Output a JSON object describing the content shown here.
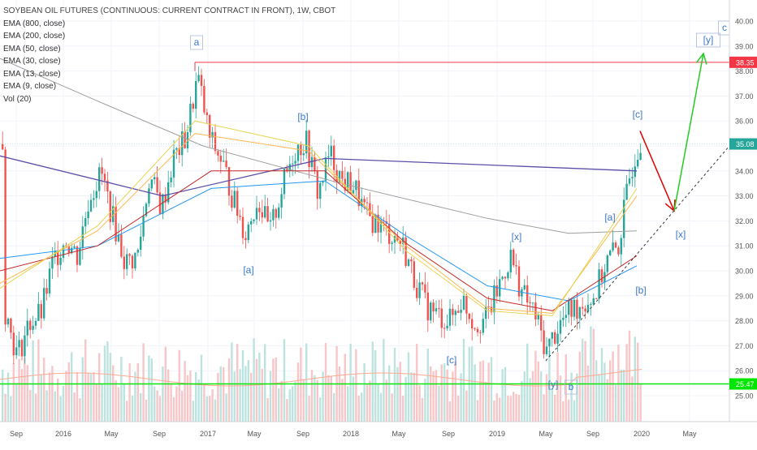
{
  "header": {
    "title": "SOYBEAN OIL FUTURES (CONTINUOUS: CURRENT CONTRACT IN FRONT), 1W, CBOT",
    "indicators": [
      "EMA (800, close)",
      "EMA (200, close)",
      "EMA (50, close)",
      "EMA (30, close)",
      "EMA (13, close)",
      "EMA (9, close)",
      "Vol (20)"
    ]
  },
  "chart_data": {
    "type": "line",
    "symbol": "Soybean Oil Futures",
    "interval": "1W",
    "x_tick_labels": [
      "Sep",
      "2016",
      "May",
      "Sep",
      "2017",
      "May",
      "Sep",
      "2018",
      "May",
      "Sep",
      "2019",
      "May",
      "Sep",
      "2020",
      "May"
    ],
    "y_tick_labels": [
      "40.00",
      "39.00",
      "38.00",
      "37.00",
      "36.00",
      "35.00",
      "34.00",
      "33.00",
      "32.00",
      "31.00",
      "30.00",
      "29.00",
      "28.00",
      "27.00",
      "26.00",
      "25.00"
    ],
    "ylim": [
      24.8,
      40.3
    ],
    "price_badges": [
      {
        "label": "38.35",
        "value": 38.35,
        "color": "#f23645"
      },
      {
        "label": "35.08",
        "value": 35.08,
        "color": "#26a69a"
      },
      {
        "label": "25.47",
        "value": 25.47,
        "color": "#00e600"
      }
    ],
    "horizontal_lines": [
      {
        "value": 38.35,
        "color": "#f23645"
      },
      {
        "value": 25.47,
        "color": "#00e600"
      }
    ],
    "price_series": {
      "name": "Close",
      "points": [
        [
          "2015-08",
          28.4
        ],
        [
          "2015-09",
          26.6
        ],
        [
          "2015-10",
          27.9
        ],
        [
          "2015-11",
          28.3
        ],
        [
          "2015-12",
          30.4
        ],
        [
          "2016-01",
          31.3
        ],
        [
          "2016-02",
          30.6
        ],
        [
          "2016-03",
          33.0
        ],
        [
          "2016-04",
          33.9
        ],
        [
          "2016-05",
          32.0
        ],
        [
          "2016-06",
          30.3
        ],
        [
          "2016-07",
          30.6
        ],
        [
          "2016-08",
          33.8
        ],
        [
          "2016-09",
          32.5
        ],
        [
          "2016-10",
          34.5
        ],
        [
          "2016-11",
          35.3
        ],
        [
          "2016-12",
          37.8
        ],
        [
          "2017-01",
          35.3
        ],
        [
          "2017-02",
          34.4
        ],
        [
          "2017-03",
          32.8
        ],
        [
          "2017-04",
          31.5
        ],
        [
          "2017-05",
          32.9
        ],
        [
          "2017-06",
          31.5
        ],
        [
          "2017-07",
          33.3
        ],
        [
          "2017-08",
          34.8
        ],
        [
          "2017-09",
          35.2
        ],
        [
          "2017-10",
          33.1
        ],
        [
          "2017-11",
          34.7
        ],
        [
          "2017-12",
          33.6
        ],
        [
          "2018-01",
          33.4
        ],
        [
          "2018-02",
          32.2
        ],
        [
          "2018-03",
          31.9
        ],
        [
          "2018-04",
          31.5
        ],
        [
          "2018-05",
          31.1
        ],
        [
          "2018-06",
          29.7
        ],
        [
          "2018-07",
          28.6
        ],
        [
          "2018-08",
          28.2
        ],
        [
          "2018-09",
          28.0
        ],
        [
          "2018-10",
          28.9
        ],
        [
          "2018-11",
          27.9
        ],
        [
          "2018-12",
          28.1
        ],
        [
          "2019-01",
          29.3
        ],
        [
          "2019-02",
          30.6
        ],
        [
          "2019-03",
          29.1
        ],
        [
          "2019-04",
          28.3
        ],
        [
          "2019-05",
          26.8
        ],
        [
          "2019-06",
          27.8
        ],
        [
          "2019-07",
          28.4
        ],
        [
          "2019-08",
          28.7
        ],
        [
          "2019-09",
          29.0
        ],
        [
          "2019-10",
          30.4
        ],
        [
          "2019-11",
          31.0
        ],
        [
          "2019-12",
          34.0
        ],
        [
          "2019-12-20",
          35.08
        ]
      ]
    },
    "series": [
      {
        "values": [
          [
            0,
            34.6
          ],
          [
            200,
            33.0
          ],
          [
            400,
            34.5
          ],
          [
            784,
            34.0
          ]
        ],
        "color": "#5c4fa8"
      },
      {
        "values": [
          [
            0,
            38.5
          ],
          [
            120,
            36.8
          ],
          [
            250,
            35.0
          ],
          [
            420,
            33.5
          ],
          [
            600,
            32.1
          ],
          [
            700,
            31.5
          ],
          [
            784,
            31.6
          ]
        ],
        "color": "#9e9e9e"
      },
      {
        "values": [
          [
            0,
            30.5
          ],
          [
            120,
            31.0
          ],
          [
            260,
            33.3
          ],
          [
            400,
            33.6
          ],
          [
            500,
            31.4
          ],
          [
            600,
            29.4
          ],
          [
            700,
            28.8
          ],
          [
            784,
            30.2
          ]
        ],
        "color": "#2196f3"
      },
      {
        "values": [
          [
            0,
            30.0
          ],
          [
            120,
            31.0
          ],
          [
            260,
            34.0
          ],
          [
            400,
            34.0
          ],
          [
            500,
            31.1
          ],
          [
            600,
            28.9
          ],
          [
            680,
            28.4
          ],
          [
            784,
            30.6
          ]
        ],
        "color": "#c62828"
      },
      {
        "values": [
          [
            0,
            29.5
          ],
          [
            120,
            31.6
          ],
          [
            240,
            35.5
          ],
          [
            380,
            34.8
          ],
          [
            500,
            31.0
          ],
          [
            600,
            28.5
          ],
          [
            680,
            28.3
          ],
          [
            784,
            33.0
          ]
        ],
        "color": "#ffb74d"
      },
      {
        "values": [
          [
            0,
            29.3
          ],
          [
            120,
            31.8
          ],
          [
            240,
            36.0
          ],
          [
            380,
            35.0
          ],
          [
            500,
            30.8
          ],
          [
            600,
            28.4
          ],
          [
            680,
            28.2
          ],
          [
            784,
            33.3
          ]
        ],
        "color": "#e6d44f"
      }
    ],
    "annotations": [
      {
        "text": "a",
        "boxed": true,
        "x_label_near": "Nov 2016",
        "value": 39.1
      },
      {
        "text": "[b]",
        "boxed": false,
        "x_label_near": "Sep 2017",
        "value": 36.1
      },
      {
        "text": "[a]",
        "boxed": false,
        "x_label_near": "Apr 2017",
        "value": 30.2
      },
      {
        "text": "[x]",
        "boxed": false,
        "x_label_near": "Feb 2019",
        "value": 32.1
      },
      {
        "text": "[c]",
        "boxed": false,
        "x_label_near": "Sep 2018",
        "value": 27.4
      },
      {
        "text": "[y]",
        "boxed": false,
        "x_label_near": "May 2019",
        "value": 26.1
      },
      {
        "text": "b",
        "boxed": true,
        "x_label_near": "Jun 2019",
        "value": 25.8
      },
      {
        "text": "[a]",
        "boxed": false,
        "x_label_near": "Oct 2019",
        "value": 32.5
      },
      {
        "text": "[b]",
        "boxed": false,
        "x_label_near": "Dec 2019",
        "value": 29.8
      },
      {
        "text": "[c]",
        "boxed": false,
        "x_label_near": "Dec 2019",
        "value": 36.3
      },
      {
        "text": "[x]",
        "boxed": false,
        "x_label_near": "Mar 2020",
        "value": 31.8
      },
      {
        "text": "[y]",
        "boxed": true,
        "x_label_near": "Apr 2020",
        "value": 39.5
      },
      {
        "text": "c",
        "boxed": true,
        "x_label_near": "May 2020",
        "value": 40.0
      }
    ],
    "projection": [
      {
        "from": [
          "Dec 2019",
          35.6
        ],
        "to": [
          "Mar 2020",
          32.4
        ],
        "color": "#e00000"
      },
      {
        "from": [
          "Mar 2020",
          32.4
        ],
        "to": [
          "May 2020",
          38.7
        ],
        "color": "#22cc22"
      }
    ],
    "volume_series": {
      "name": "Vol (20)"
    },
    "grid": true
  }
}
